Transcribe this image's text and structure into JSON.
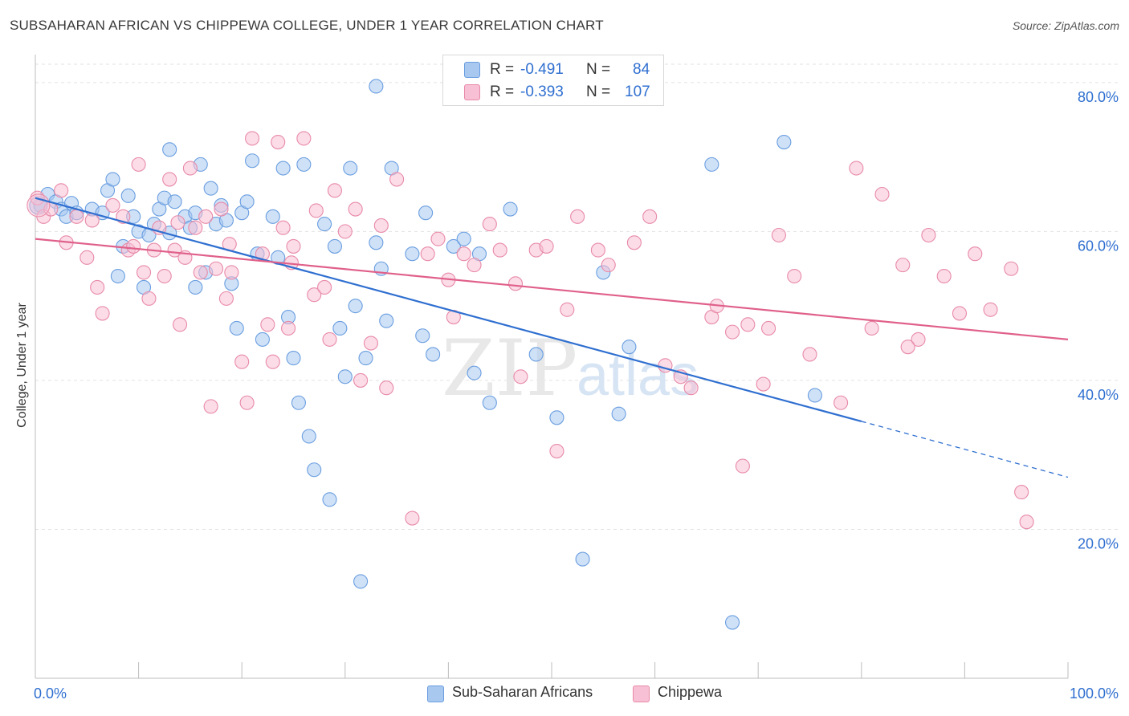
{
  "header": {
    "title": "SUBSAHARAN AFRICAN VS CHIPPEWA COLLEGE, UNDER 1 YEAR CORRELATION CHART",
    "source": "Source: ZipAtlas.com"
  },
  "legend": {
    "rows": [
      {
        "r_label": "R =",
        "r_value": "-0.491",
        "n_label": "N =",
        "n_value": "84",
        "color": "#a8c8f0",
        "stroke": "#6a9ee0"
      },
      {
        "r_label": "R =",
        "r_value": "-0.393",
        "n_label": "N =",
        "n_value": "107",
        "color": "#f8c0d4",
        "stroke": "#e88aa8"
      }
    ]
  },
  "bottom_legend": [
    {
      "label": "Sub-Saharan Africans",
      "color": "#a8c8f0",
      "stroke": "#6a9ee0"
    },
    {
      "label": "Chippewa",
      "color": "#f8c0d4",
      "stroke": "#e88aa8"
    }
  ],
  "watermark": {
    "zip": "ZIP",
    "atlas": "atlas"
  },
  "chart_data": {
    "type": "scatter",
    "title": "SUBSAHARAN AFRICAN VS CHIPPEWA COLLEGE, UNDER 1 YEAR CORRELATION CHART",
    "xlabel": "",
    "ylabel": "College, Under 1 year",
    "xlim": [
      0,
      100
    ],
    "ylim": [
      0,
      83
    ],
    "x_tick_labels": [
      {
        "value": 0,
        "label": "0.0%"
      },
      {
        "value": 100,
        "label": "100.0%"
      }
    ],
    "y_tick_labels": [
      {
        "value": 20,
        "label": "20.0%"
      },
      {
        "value": 40,
        "label": "40.0%"
      },
      {
        "value": 60,
        "label": "60.0%"
      },
      {
        "value": 80,
        "label": "80.0%"
      }
    ],
    "x_minor_ticks": [
      0,
      10,
      20,
      30,
      40,
      50,
      60,
      70,
      80,
      90,
      100
    ],
    "grid": true,
    "series": [
      {
        "name": "Sub-Saharan Africans",
        "color": "#6a9ee0",
        "fill": "#a8c8f0",
        "trend": {
          "x0": 0,
          "y0": 64.5,
          "x1": 80,
          "y1": 34.5,
          "dash_to_x": 100,
          "dash_to_y": 27.0,
          "color": "#2f6fd0"
        },
        "points": [
          [
            0.5,
            63.5
          ],
          [
            1.2,
            65.0
          ],
          [
            2.0,
            64.0
          ],
          [
            2.5,
            63.0
          ],
          [
            3.5,
            63.8
          ],
          [
            3.0,
            62.0
          ],
          [
            4.0,
            62.5
          ],
          [
            5.5,
            63.0
          ],
          [
            6.5,
            62.5
          ],
          [
            7.0,
            65.5
          ],
          [
            7.5,
            67.0
          ],
          [
            8.5,
            58.0
          ],
          [
            8.0,
            54.0
          ],
          [
            9.0,
            64.8
          ],
          [
            9.5,
            62.0
          ],
          [
            10.0,
            60.0
          ],
          [
            10.5,
            52.5
          ],
          [
            11.0,
            59.5
          ],
          [
            11.5,
            61.0
          ],
          [
            12.0,
            63.0
          ],
          [
            12.5,
            64.5
          ],
          [
            13.0,
            59.8
          ],
          [
            13.0,
            71.0
          ],
          [
            13.5,
            64.0
          ],
          [
            14.5,
            62.0
          ],
          [
            15.0,
            60.5
          ],
          [
            15.5,
            62.5
          ],
          [
            15.5,
            52.5
          ],
          [
            16.0,
            69.0
          ],
          [
            16.5,
            54.5
          ],
          [
            17.0,
            65.8
          ],
          [
            17.5,
            61.0
          ],
          [
            18.0,
            63.5
          ],
          [
            18.5,
            61.5
          ],
          [
            19.0,
            53.0
          ],
          [
            19.5,
            47.0
          ],
          [
            20.0,
            62.5
          ],
          [
            20.5,
            64.0
          ],
          [
            21.0,
            69.5
          ],
          [
            21.5,
            57.0
          ],
          [
            22.0,
            45.5
          ],
          [
            23.0,
            62.0
          ],
          [
            23.5,
            56.5
          ],
          [
            24.0,
            68.5
          ],
          [
            24.5,
            48.5
          ],
          [
            25.0,
            43.0
          ],
          [
            25.5,
            37.0
          ],
          [
            26.0,
            69.0
          ],
          [
            26.5,
            32.5
          ],
          [
            27.0,
            28.0
          ],
          [
            28.5,
            24.0
          ],
          [
            28.0,
            61.0
          ],
          [
            29.0,
            58.0
          ],
          [
            29.5,
            47.0
          ],
          [
            30.5,
            68.5
          ],
          [
            31.0,
            50.0
          ],
          [
            31.5,
            13.0
          ],
          [
            32.0,
            43.0
          ],
          [
            33.0,
            58.5
          ],
          [
            33.5,
            55.0
          ],
          [
            34.0,
            48.0
          ],
          [
            34.5,
            68.5
          ],
          [
            33.0,
            79.5
          ],
          [
            36.5,
            57.0
          ],
          [
            37.5,
            46.0
          ],
          [
            38.5,
            43.5
          ],
          [
            40.5,
            58.0
          ],
          [
            42.5,
            41.0
          ],
          [
            43.0,
            57.0
          ],
          [
            44.0,
            37.0
          ],
          [
            46.0,
            63.0
          ],
          [
            48.5,
            43.5
          ],
          [
            50.5,
            35.0
          ],
          [
            53.0,
            16.0
          ],
          [
            55.0,
            54.5
          ],
          [
            56.5,
            35.5
          ],
          [
            57.5,
            44.5
          ],
          [
            65.5,
            69.0
          ],
          [
            67.5,
            7.5
          ],
          [
            72.5,
            72.0
          ],
          [
            75.5,
            38.0
          ],
          [
            37.8,
            62.5
          ],
          [
            41.5,
            59.0
          ],
          [
            30.0,
            40.5
          ]
        ]
      },
      {
        "name": "Chippewa",
        "color": "#e88aa8",
        "fill": "#f8c0d4",
        "trend": {
          "x0": 0,
          "y0": 59.0,
          "x1": 100,
          "y1": 45.5,
          "color": "#e0608a"
        },
        "points": [
          [
            0.2,
            64.5
          ],
          [
            0.8,
            62.0
          ],
          [
            1.5,
            63.0
          ],
          [
            2.5,
            65.5
          ],
          [
            3.0,
            58.5
          ],
          [
            4.0,
            62.0
          ],
          [
            5.5,
            61.5
          ],
          [
            5.0,
            56.5
          ],
          [
            6.0,
            52.5
          ],
          [
            6.5,
            49.0
          ],
          [
            7.5,
            63.5
          ],
          [
            8.5,
            62.0
          ],
          [
            9.0,
            57.5
          ],
          [
            9.5,
            58.0
          ],
          [
            10.0,
            69.0
          ],
          [
            10.5,
            54.5
          ],
          [
            11.0,
            51.0
          ],
          [
            11.5,
            57.5
          ],
          [
            12.0,
            60.5
          ],
          [
            12.5,
            54.0
          ],
          [
            13.0,
            67.0
          ],
          [
            13.5,
            57.5
          ],
          [
            14.0,
            47.5
          ],
          [
            14.5,
            56.5
          ],
          [
            15.0,
            68.5
          ],
          [
            15.5,
            60.5
          ],
          [
            16.0,
            54.5
          ],
          [
            16.5,
            62.0
          ],
          [
            17.0,
            36.5
          ],
          [
            17.5,
            55.0
          ],
          [
            18.0,
            63.0
          ],
          [
            18.5,
            51.0
          ],
          [
            19.0,
            54.5
          ],
          [
            20.0,
            42.5
          ],
          [
            20.5,
            37.0
          ],
          [
            21.0,
            72.5
          ],
          [
            22.0,
            57.0
          ],
          [
            22.5,
            47.5
          ],
          [
            23.0,
            42.5
          ],
          [
            23.5,
            72.0
          ],
          [
            24.0,
            60.5
          ],
          [
            24.5,
            47.0
          ],
          [
            25.0,
            58.0
          ],
          [
            26.0,
            72.5
          ],
          [
            27.0,
            51.5
          ],
          [
            28.0,
            52.5
          ],
          [
            28.5,
            45.5
          ],
          [
            29.0,
            65.5
          ],
          [
            30.0,
            60.0
          ],
          [
            31.0,
            63.0
          ],
          [
            31.5,
            40.0
          ],
          [
            32.5,
            45.0
          ],
          [
            34.0,
            39.0
          ],
          [
            35.0,
            67.0
          ],
          [
            36.5,
            21.5
          ],
          [
            38.0,
            57.0
          ],
          [
            39.0,
            59.0
          ],
          [
            40.0,
            53.5
          ],
          [
            40.5,
            48.5
          ],
          [
            41.5,
            57.0
          ],
          [
            42.5,
            55.5
          ],
          [
            44.0,
            61.0
          ],
          [
            45.0,
            57.5
          ],
          [
            46.5,
            53.0
          ],
          [
            47.0,
            40.5
          ],
          [
            48.5,
            57.5
          ],
          [
            49.5,
            58.0
          ],
          [
            50.5,
            30.5
          ],
          [
            51.5,
            49.5
          ],
          [
            52.5,
            62.0
          ],
          [
            54.5,
            57.5
          ],
          [
            55.5,
            55.5
          ],
          [
            58.0,
            58.5
          ],
          [
            59.5,
            62.0
          ],
          [
            61.0,
            42.0
          ],
          [
            62.5,
            40.5
          ],
          [
            63.5,
            39.0
          ],
          [
            65.5,
            48.5
          ],
          [
            66.0,
            50.0
          ],
          [
            67.5,
            46.5
          ],
          [
            68.5,
            28.5
          ],
          [
            69.0,
            47.5
          ],
          [
            70.5,
            39.5
          ],
          [
            71.0,
            47.0
          ],
          [
            72.0,
            59.5
          ],
          [
            73.5,
            54.0
          ],
          [
            75.0,
            43.5
          ],
          [
            78.0,
            37.0
          ],
          [
            79.5,
            68.5
          ],
          [
            81.0,
            47.0
          ],
          [
            82.0,
            65.0
          ],
          [
            84.0,
            55.5
          ],
          [
            85.5,
            45.5
          ],
          [
            86.5,
            59.5
          ],
          [
            88.0,
            54.0
          ],
          [
            89.5,
            49.0
          ],
          [
            91.0,
            57.0
          ],
          [
            92.5,
            49.5
          ],
          [
            94.5,
            55.0
          ],
          [
            95.5,
            25.0
          ],
          [
            96.0,
            21.0
          ],
          [
            84.5,
            44.5
          ],
          [
            27.2,
            62.8
          ],
          [
            13.8,
            61.2
          ],
          [
            33.5,
            60.8
          ],
          [
            24.8,
            55.8
          ],
          [
            18.8,
            58.3
          ]
        ]
      }
    ]
  }
}
